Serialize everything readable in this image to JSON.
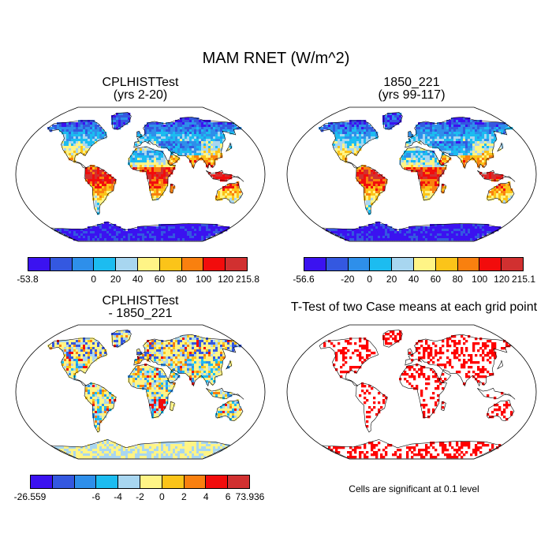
{
  "title": "MAM RNET (W/m^2)",
  "panels": [
    {
      "id": "case1",
      "title_line1": "CPLHISTTest",
      "title_line2": "(yrs 2-20)",
      "kind": "field-warm"
    },
    {
      "id": "case2",
      "title_line1": "1850_221",
      "title_line2": "(yrs 99-117)",
      "kind": "field-warm"
    },
    {
      "id": "diff",
      "title_line1": "CPLHISTTest",
      "title_line2": "- 1850_221",
      "kind": "field-diff"
    },
    {
      "id": "ttest",
      "title_line1": "T-Test of two Case means at each grid point",
      "title_line2": "",
      "kind": "significance"
    }
  ],
  "colorbars": {
    "case1": {
      "labels": [
        "-53.8",
        "0",
        "20",
        "40",
        "60",
        "80",
        "100",
        "120",
        "215.8"
      ]
    },
    "case2": {
      "labels": [
        "-56.6",
        "-20",
        "0",
        "20",
        "40",
        "60",
        "80",
        "100",
        "120",
        "215.1"
      ]
    },
    "diff": {
      "labels": [
        "-26.559",
        "-6",
        "-4",
        "-2",
        "0",
        "2",
        "4",
        "6",
        "73.936"
      ]
    }
  },
  "palette": [
    "#3b12f0",
    "#3458e0",
    "#2e8fea",
    "#1cbcf0",
    "#a8d6f0",
    "#fff486",
    "#fbc419",
    "#f9800f",
    "#f20c0c",
    "#d13030"
  ],
  "significance_color": "#ff0000",
  "note": "Cells are significant at 0.1 level"
}
